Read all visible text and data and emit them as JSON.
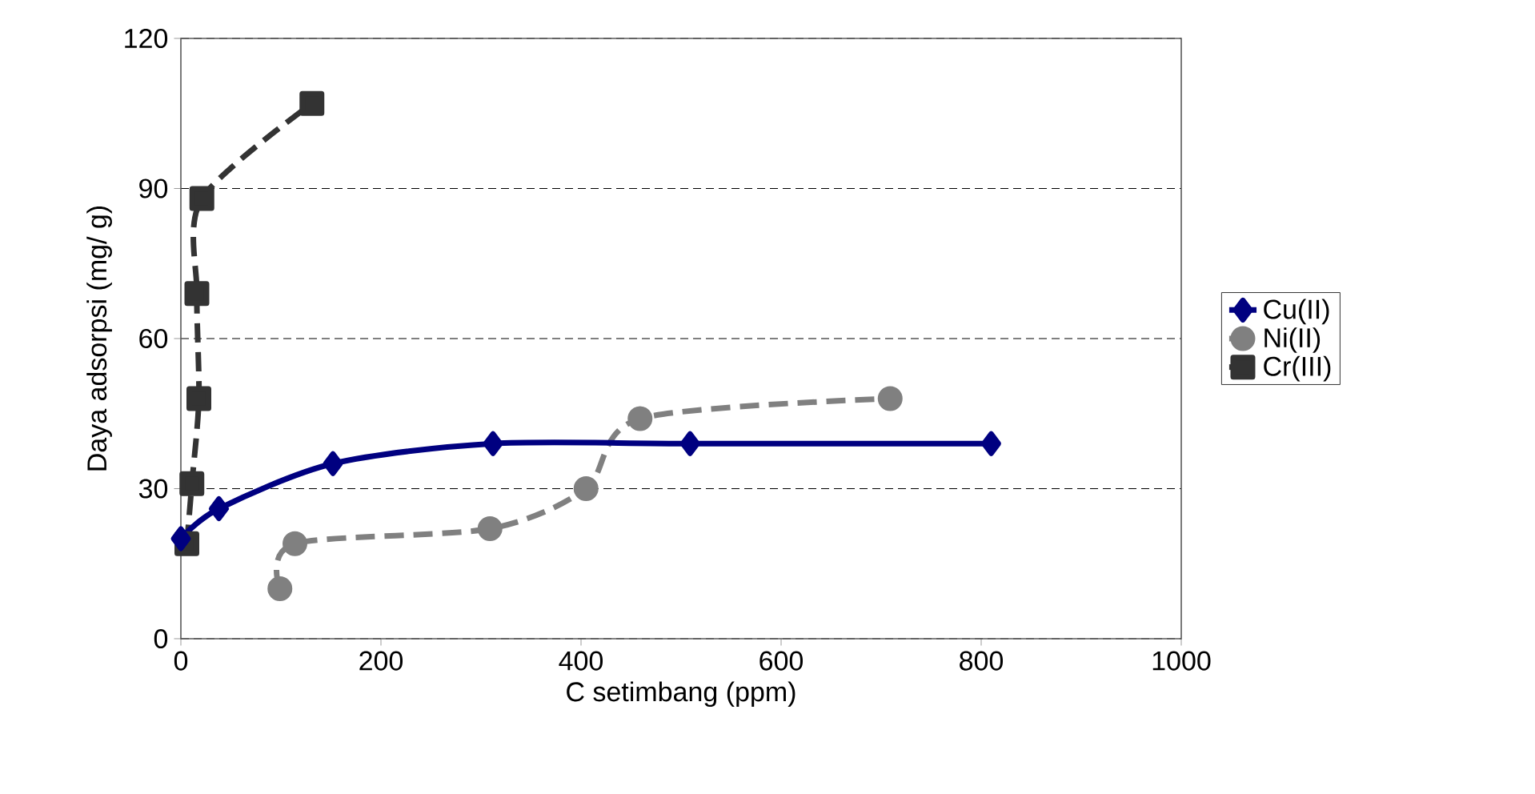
{
  "chart_data": {
    "type": "line",
    "xlabel": "C setimbang (ppm)",
    "ylabel": "Daya adsorpsi (mg/ g)",
    "xlim": [
      0,
      1000
    ],
    "xticks": [
      0,
      200,
      400,
      600,
      800,
      1000
    ],
    "ylim": [
      0,
      120
    ],
    "yticks": [
      0,
      30,
      60,
      90,
      120
    ],
    "grid": "y",
    "legend": "right",
    "series": [
      {
        "name": "Cu(II)",
        "color": "#000080",
        "marker": "diamond",
        "line_style": "solid",
        "x": [
          0,
          38,
          152,
          312,
          509,
          810
        ],
        "values": [
          20,
          26,
          35,
          39,
          39,
          39
        ]
      },
      {
        "name": "Ni(II)",
        "color": "#808080",
        "marker": "circle",
        "line_style": "dashed",
        "x": [
          99,
          114,
          309,
          405,
          459,
          709
        ],
        "values": [
          10,
          19,
          22,
          30,
          44,
          48
        ]
      },
      {
        "name": "Cr(III)",
        "color": "#333333",
        "marker": "square",
        "line_style": "dashed",
        "x": [
          6,
          11,
          18,
          16,
          21,
          131
        ],
        "values": [
          19,
          31,
          48,
          69,
          88,
          107
        ]
      }
    ]
  }
}
